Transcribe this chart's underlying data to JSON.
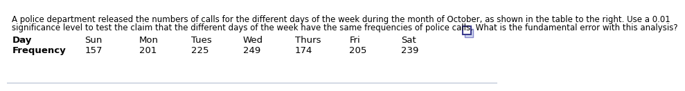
{
  "paragraph": "A police department released the numbers of calls for the different days of the week during the month of October, as shown in the table to the right. Use a 0.01 significance level to test the claim that the different days of the week have the same frequencies of police calls. What is the fundamental error with this analysis?",
  "days": [
    "Day",
    "Sun",
    "Mon",
    "Tues",
    "Wed",
    "Thurs",
    "Fri",
    "Sat"
  ],
  "frequencies": [
    "Frequency",
    "157",
    "201",
    "225",
    "249",
    "174",
    "205",
    "239"
  ],
  "background_color": "#ffffff",
  "text_color": "#000000",
  "font_size_para": 8.5,
  "font_size_table": 9.5,
  "border_color": "#c0c8d8"
}
